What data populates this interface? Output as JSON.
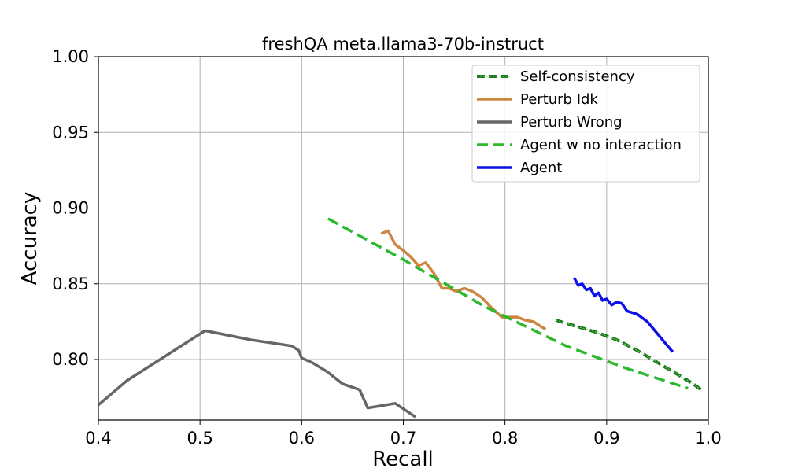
{
  "chart_data": {
    "type": "line",
    "title": "freshQA meta.llama3-70b-instruct",
    "xlabel": "Recall",
    "ylabel": "Accuracy",
    "xlim": [
      0.4,
      1.0
    ],
    "ylim": [
      0.76,
      1.0
    ],
    "xticks": [
      "0.4",
      "0.5",
      "0.6",
      "0.7",
      "0.8",
      "0.9",
      "1.0"
    ],
    "yticks": [
      "0.80",
      "0.85",
      "0.90",
      "0.95",
      "1.00"
    ],
    "grid": true,
    "legend_position": "top-right",
    "series": [
      {
        "name": "Self-consistency",
        "color": "#1a7a1a",
        "style": "dotted-dashed",
        "x": [
          0.85,
          0.87,
          0.89,
          0.91,
          0.93,
          0.95,
          0.97,
          0.985,
          0.993
        ],
        "y": [
          0.826,
          0.822,
          0.818,
          0.813,
          0.806,
          0.798,
          0.79,
          0.784,
          0.78
        ]
      },
      {
        "name": "Perturb Idk",
        "color": "#cd853f",
        "style": "solid",
        "x": [
          0.678,
          0.685,
          0.692,
          0.7,
          0.707,
          0.715,
          0.722,
          0.73,
          0.738,
          0.745,
          0.752,
          0.76,
          0.768,
          0.777,
          0.787,
          0.797,
          0.805,
          0.812,
          0.82,
          0.828,
          0.835,
          0.84
        ],
        "y": [
          0.883,
          0.885,
          0.876,
          0.872,
          0.868,
          0.862,
          0.864,
          0.857,
          0.847,
          0.847,
          0.845,
          0.847,
          0.845,
          0.841,
          0.834,
          0.828,
          0.828,
          0.828,
          0.826,
          0.825,
          0.822,
          0.82
        ]
      },
      {
        "name": "Perturb Wrong",
        "color": "#666666",
        "style": "solid",
        "x": [
          0.4,
          0.428,
          0.505,
          0.55,
          0.59,
          0.597,
          0.6,
          0.61,
          0.625,
          0.64,
          0.657,
          0.665,
          0.692,
          0.712
        ],
        "y": [
          0.77,
          0.786,
          0.819,
          0.813,
          0.809,
          0.806,
          0.801,
          0.798,
          0.792,
          0.784,
          0.78,
          0.768,
          0.771,
          0.762
        ]
      },
      {
        "name": "Agent w no interaction",
        "color": "#2db82d",
        "style": "dashed",
        "x": [
          0.626,
          0.7,
          0.78,
          0.86,
          0.92,
          0.98
        ],
        "y": [
          0.893,
          0.866,
          0.835,
          0.809,
          0.794,
          0.781
        ]
      },
      {
        "name": "Agent",
        "color": "#0a10e6",
        "style": "solid",
        "x": [
          0.868,
          0.872,
          0.876,
          0.88,
          0.884,
          0.888,
          0.892,
          0.896,
          0.9,
          0.905,
          0.91,
          0.915,
          0.92,
          0.93,
          0.94,
          0.95,
          0.96,
          0.965
        ],
        "y": [
          0.854,
          0.849,
          0.85,
          0.846,
          0.847,
          0.842,
          0.844,
          0.839,
          0.84,
          0.836,
          0.838,
          0.837,
          0.832,
          0.83,
          0.825,
          0.817,
          0.809,
          0.805
        ]
      }
    ]
  }
}
